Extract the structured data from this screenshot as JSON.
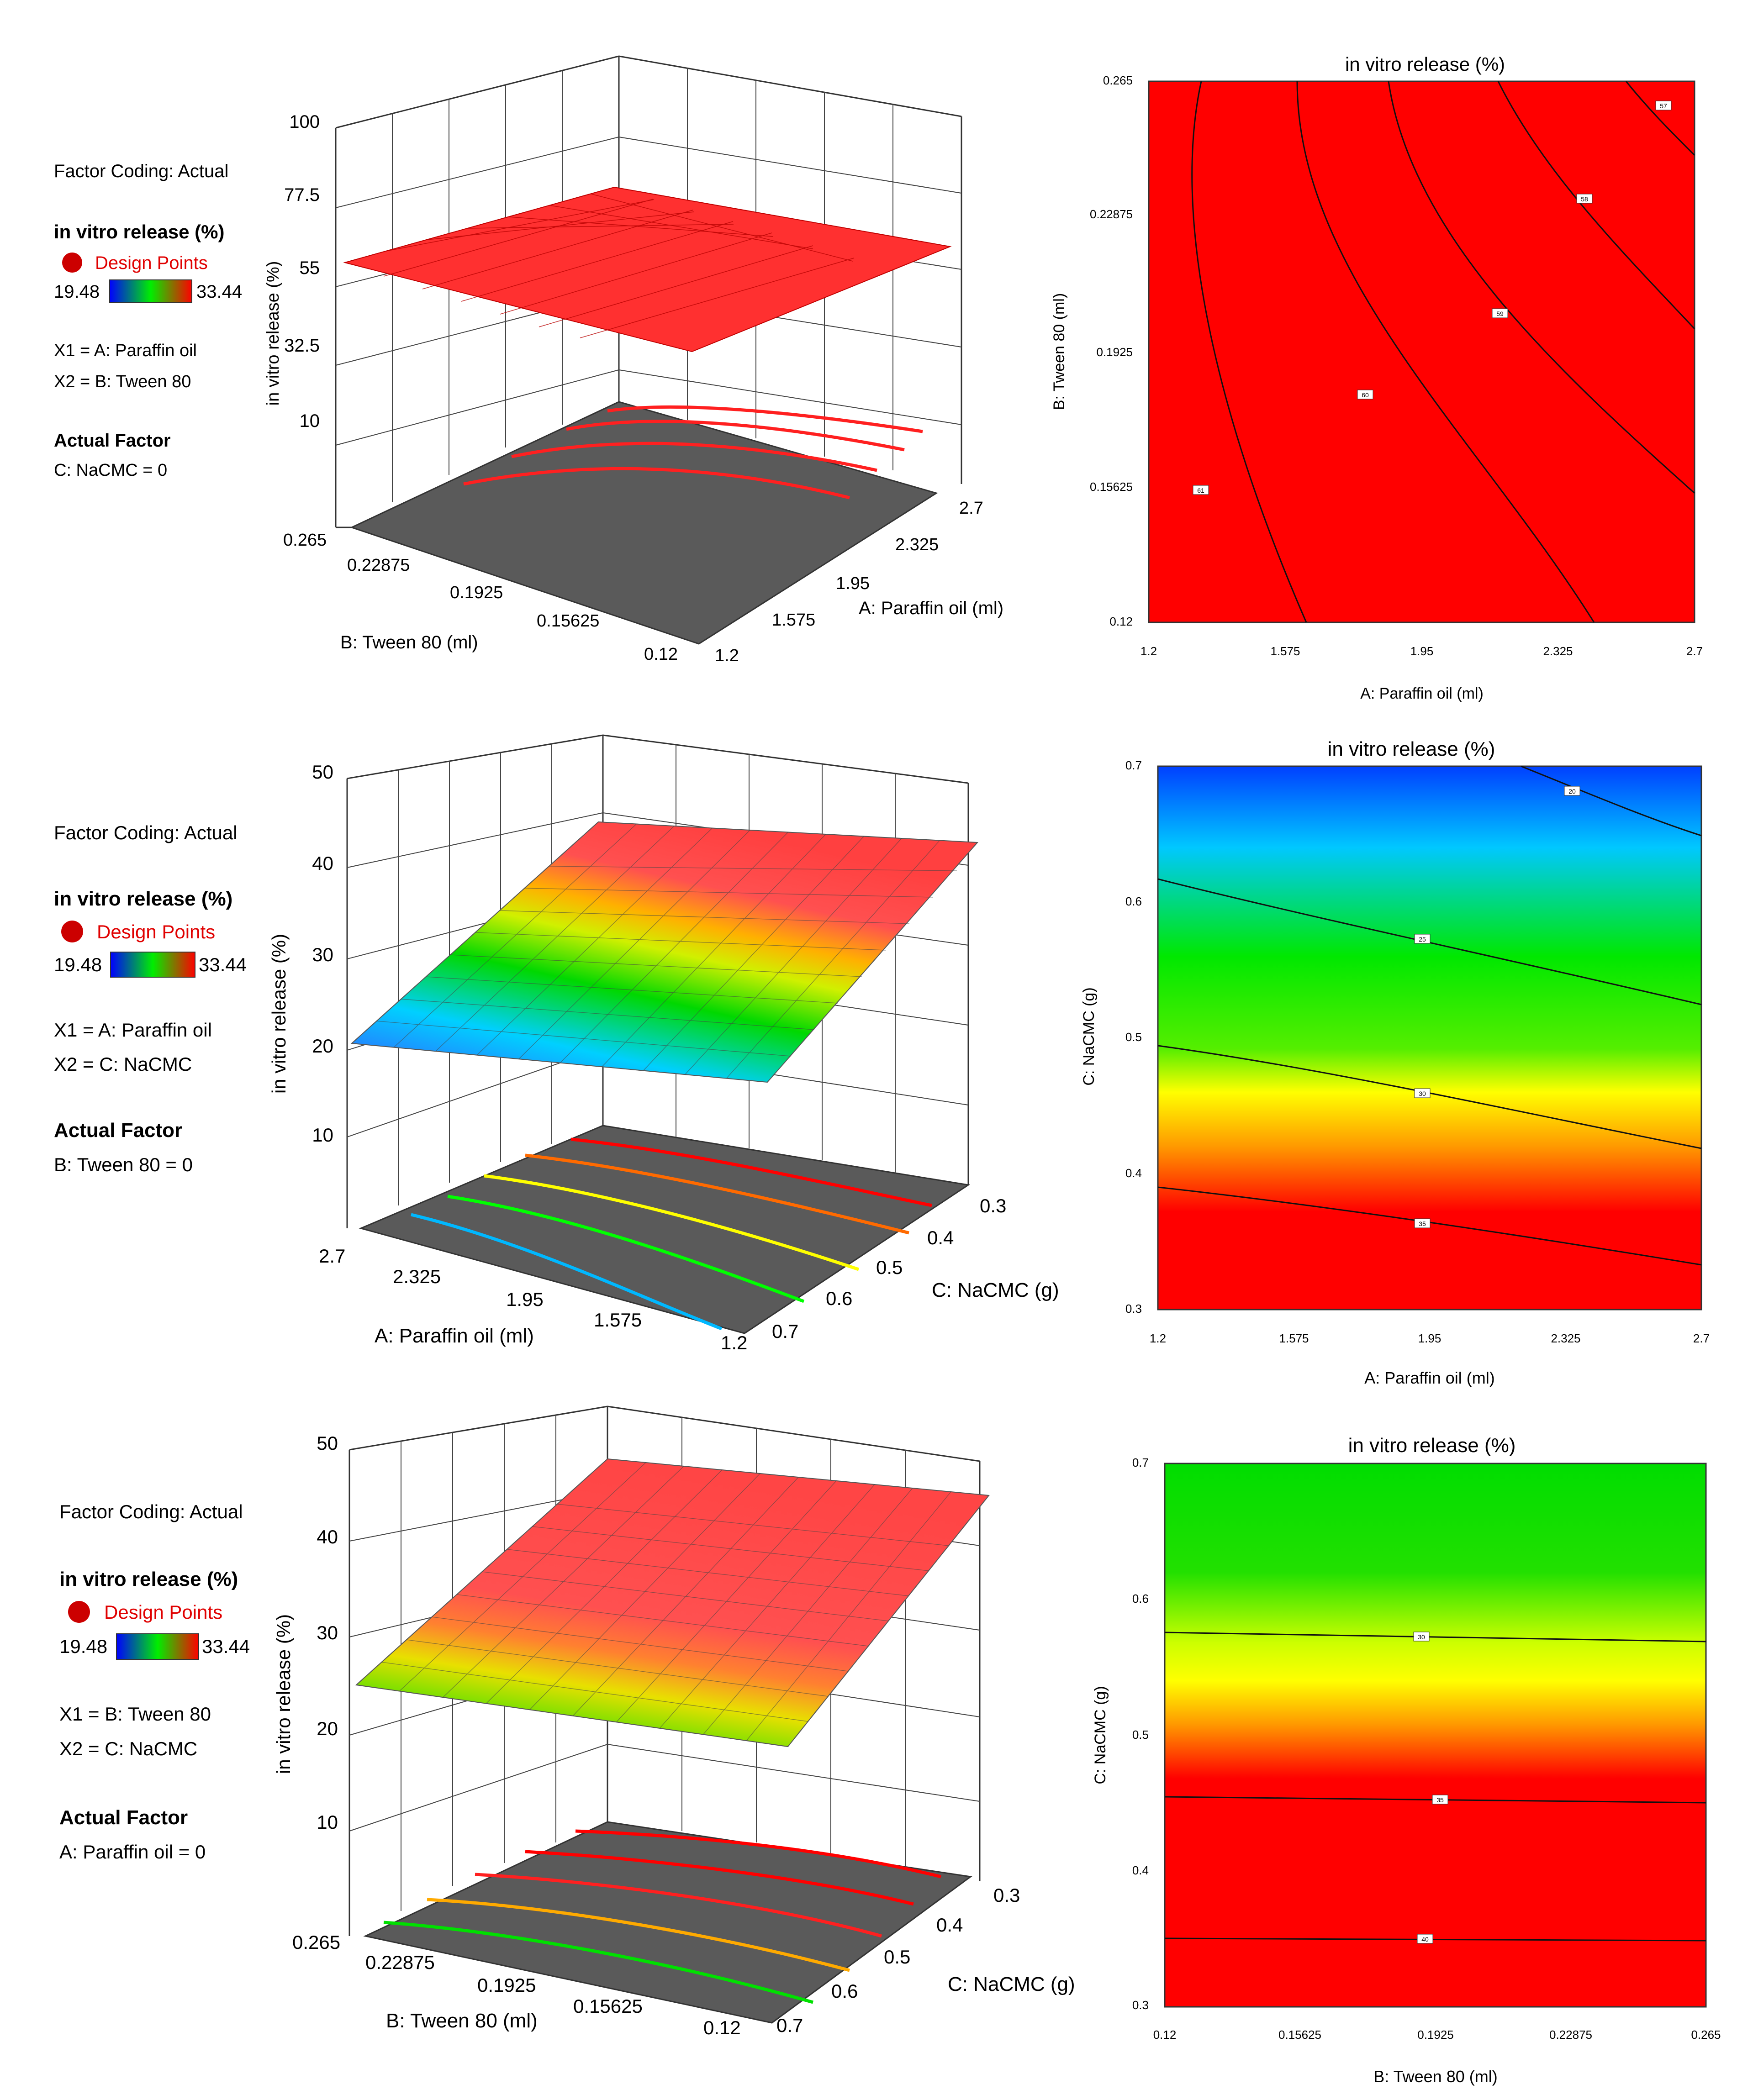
{
  "legend_common": {
    "factor_coding": "Factor Coding: Actual",
    "response": "in vitro release (%)",
    "design_points": "Design Points",
    "scale_min": "19.48",
    "scale_max": "33.44",
    "actual_factor_title": "Actual Factor"
  },
  "colors": {
    "red": "#ff0000",
    "floor": "#5a5a5a",
    "design_point": "#cc0000",
    "grid": "#333333"
  },
  "panels": [
    {
      "legend": {
        "x1": "X1 = A: Paraffin oil",
        "x2": "X2 = B: Tween 80",
        "actual": "C: NaCMC = 0"
      },
      "surface": {
        "zlabel": "in vitro release (%)",
        "zticks": [
          "100",
          "77.5",
          "55",
          "32.5",
          "10"
        ],
        "zlim": [
          10,
          100
        ],
        "left_axis_label": "B: Tween 80 (ml)",
        "left_ticks": [
          "0.265",
          "0.22875",
          "0.1925",
          "0.15625",
          "0.12"
        ],
        "right_axis_label": "A: Paraffin oil (ml)",
        "right_ticks": [
          "2.7",
          "2.325",
          "1.95",
          "1.575",
          "1.2"
        ],
        "surface_range": [
          58,
          62
        ]
      },
      "contour": {
        "title": "in vitro release (%)",
        "xlabel": "A: Paraffin oil (ml)",
        "ylabel": "B: Tween 80 (ml)",
        "xticks": [
          "1.2",
          "1.575",
          "1.95",
          "2.325",
          "2.7"
        ],
        "yticks": [
          "0.12",
          "0.15625",
          "0.1925",
          "0.22875",
          "0.265"
        ],
        "contour_labels": [
          "61",
          "60",
          "59",
          "58",
          "57"
        ]
      }
    },
    {
      "legend": {
        "x1": "X1 = A: Paraffin oil",
        "x2": "X2 = C: NaCMC",
        "actual": "B: Tween 80 = 0"
      },
      "surface": {
        "zlabel": "in vitro release (%)",
        "zticks": [
          "50",
          "40",
          "30",
          "20",
          "10"
        ],
        "zlim": [
          10,
          50
        ],
        "left_axis_label": "A: Paraffin oil (ml)",
        "left_ticks": [
          "2.7",
          "2.325",
          "1.95",
          "1.575",
          "1.2"
        ],
        "right_axis_label": "C: NaCMC (g)",
        "right_ticks": [
          "0.3",
          "0.4",
          "0.5",
          "0.6",
          "0.7"
        ],
        "surface_range": [
          17,
          42
        ]
      },
      "contour": {
        "title": "in vitro release (%)",
        "xlabel": "A: Paraffin oil (ml)",
        "ylabel": "C: NaCMC (g)",
        "xticks": [
          "1.2",
          "1.575",
          "1.95",
          "2.325",
          "2.7"
        ],
        "yticks": [
          "0.3",
          "0.4",
          "0.5",
          "0.6",
          "0.7"
        ],
        "contour_labels": [
          "20",
          "25",
          "30",
          "35"
        ]
      }
    },
    {
      "legend": {
        "x1": "X1 = B: Tween 80",
        "x2": "X2 = C: NaCMC",
        "actual": "A: Paraffin oil = 0"
      },
      "surface": {
        "zlabel": "in vitro release (%)",
        "zticks": [
          "50",
          "40",
          "30",
          "20",
          "10"
        ],
        "zlim": [
          10,
          50
        ],
        "left_axis_label": "B: Tween 80 (ml)",
        "left_ticks": [
          "0.265",
          "0.22875",
          "0.1925",
          "0.15625",
          "0.12"
        ],
        "right_axis_label": "C: NaCMC (g)",
        "right_ticks": [
          "0.3",
          "0.4",
          "0.5",
          "0.6",
          "0.7"
        ],
        "surface_range": [
          24,
          45
        ]
      },
      "contour": {
        "title": "in vitro release (%)",
        "xlabel": "B: Tween 80 (ml)",
        "ylabel": "C: NaCMC (g)",
        "xticks": [
          "0.12",
          "0.15625",
          "0.1925",
          "0.22875",
          "0.265"
        ],
        "yticks": [
          "0.3",
          "0.4",
          "0.5",
          "0.6",
          "0.7"
        ],
        "contour_labels": [
          "30",
          "35",
          "40"
        ]
      }
    }
  ],
  "chart_data": [
    {
      "type": "surface",
      "title": "in vitro release (%) vs A: Paraffin oil and B: Tween 80",
      "x": [
        1.2,
        1.575,
        1.95,
        2.325,
        2.7
      ],
      "y": [
        0.12,
        0.15625,
        0.1925,
        0.22875,
        0.265
      ],
      "zlim": [
        10,
        100
      ],
      "z_approx_range": [
        58,
        62
      ],
      "xlabel": "A: Paraffin oil (ml)",
      "ylabel": "B: Tween 80 (ml)",
      "zlabel": "in vitro release (%)"
    },
    {
      "type": "contour",
      "title": "in vitro release (%)",
      "xlim": [
        1.2,
        2.7
      ],
      "ylim": [
        0.12,
        0.265
      ],
      "levels": [
        61,
        60,
        59,
        58,
        57
      ],
      "xlabel": "A: Paraffin oil (ml)",
      "ylabel": "B: Tween 80 (ml)"
    },
    {
      "type": "surface",
      "title": "in vitro release (%) vs A: Paraffin oil and C: NaCMC",
      "x": [
        1.2,
        1.575,
        1.95,
        2.325,
        2.7
      ],
      "y": [
        0.3,
        0.4,
        0.5,
        0.6,
        0.7
      ],
      "zlim": [
        10,
        50
      ],
      "z_approx_range": [
        17,
        42
      ],
      "xlabel": "A: Paraffin oil (ml)",
      "ylabel": "C: NaCMC (g)",
      "zlabel": "in vitro release (%)"
    },
    {
      "type": "contour",
      "title": "in vitro release (%)",
      "xlim": [
        1.2,
        2.7
      ],
      "ylim": [
        0.3,
        0.7
      ],
      "levels": [
        20,
        25,
        30,
        35
      ],
      "xlabel": "A: Paraffin oil (ml)",
      "ylabel": "C: NaCMC (g)"
    },
    {
      "type": "surface",
      "title": "in vitro release (%) vs B: Tween 80 and C: NaCMC",
      "x": [
        0.12,
        0.15625,
        0.1925,
        0.22875,
        0.265
      ],
      "y": [
        0.3,
        0.4,
        0.5,
        0.6,
        0.7
      ],
      "zlim": [
        10,
        50
      ],
      "z_approx_range": [
        24,
        45
      ],
      "xlabel": "B: Tween 80 (ml)",
      "ylabel": "C: NaCMC (g)",
      "zlabel": "in vitro release (%)"
    },
    {
      "type": "contour",
      "title": "in vitro release (%)",
      "xlim": [
        0.12,
        0.265
      ],
      "ylim": [
        0.3,
        0.7
      ],
      "levels": [
        30,
        35,
        40
      ],
      "xlabel": "B: Tween 80 (ml)",
      "ylabel": "C: NaCMC (g)"
    }
  ]
}
